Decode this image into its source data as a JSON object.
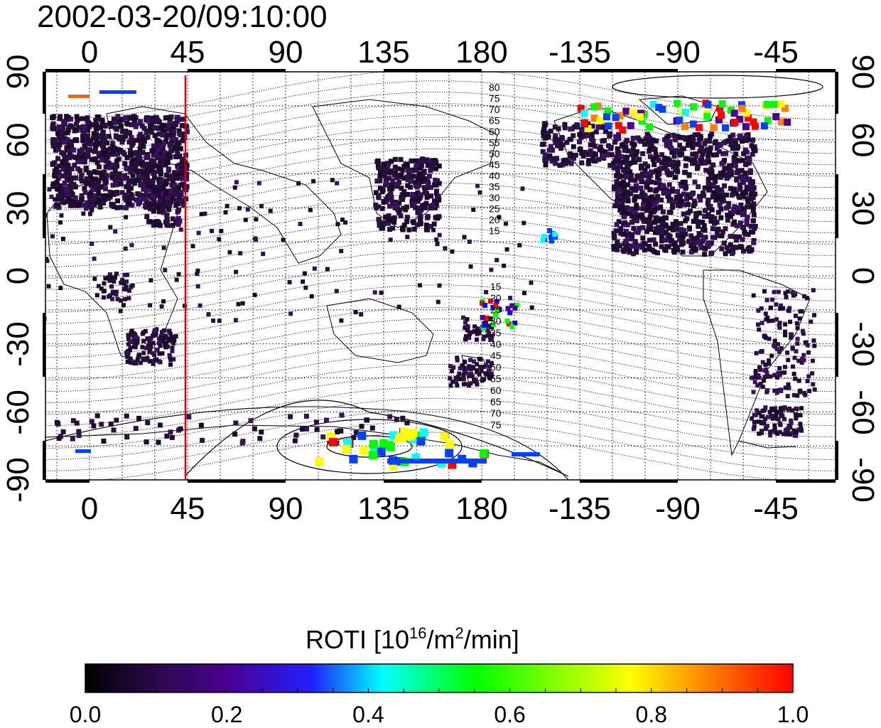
{
  "timestamp": "2002-03-20/09:10:00",
  "top_axis_labels": [
    "0",
    "45",
    "90",
    "135",
    "180",
    "-135",
    "-90",
    "-45"
  ],
  "bottom_axis_labels": [
    "0",
    "45",
    "90",
    "135",
    "180",
    "-135",
    "-90",
    "-45"
  ],
  "left_axis_labels": [
    "90",
    "60",
    "30",
    "0",
    "-30",
    "-60",
    "-90"
  ],
  "right_axis_labels": [
    "90",
    "60",
    "30",
    "0",
    "-30",
    "-60",
    "-90"
  ],
  "north_contour_labels": [
    "80",
    "75",
    "70",
    "65",
    "60",
    "55",
    "50",
    "45",
    "40",
    "35",
    "30",
    "25",
    "20",
    "15"
  ],
  "south_contour_labels": [
    "15",
    "20",
    "25",
    "30",
    "35",
    "40",
    "45",
    "50",
    "55",
    "60",
    "65",
    "70",
    "75"
  ],
  "terminator_longitude": 44,
  "colorbar": {
    "title_main": "ROTI  [10",
    "title_sup1": "16",
    "title_mid": "/m",
    "title_sup2": "2",
    "title_end": "/min]",
    "ticks": [
      "0.0",
      "0.2",
      "0.4",
      "0.6",
      "0.8",
      "1.0"
    ],
    "stops": [
      "#000000",
      "#2a0a4a",
      "#4a0090",
      "#2020ff",
      "#00ffff",
      "#00ff00",
      "#ffff00",
      "#ff8000",
      "#ff0000"
    ]
  }
}
